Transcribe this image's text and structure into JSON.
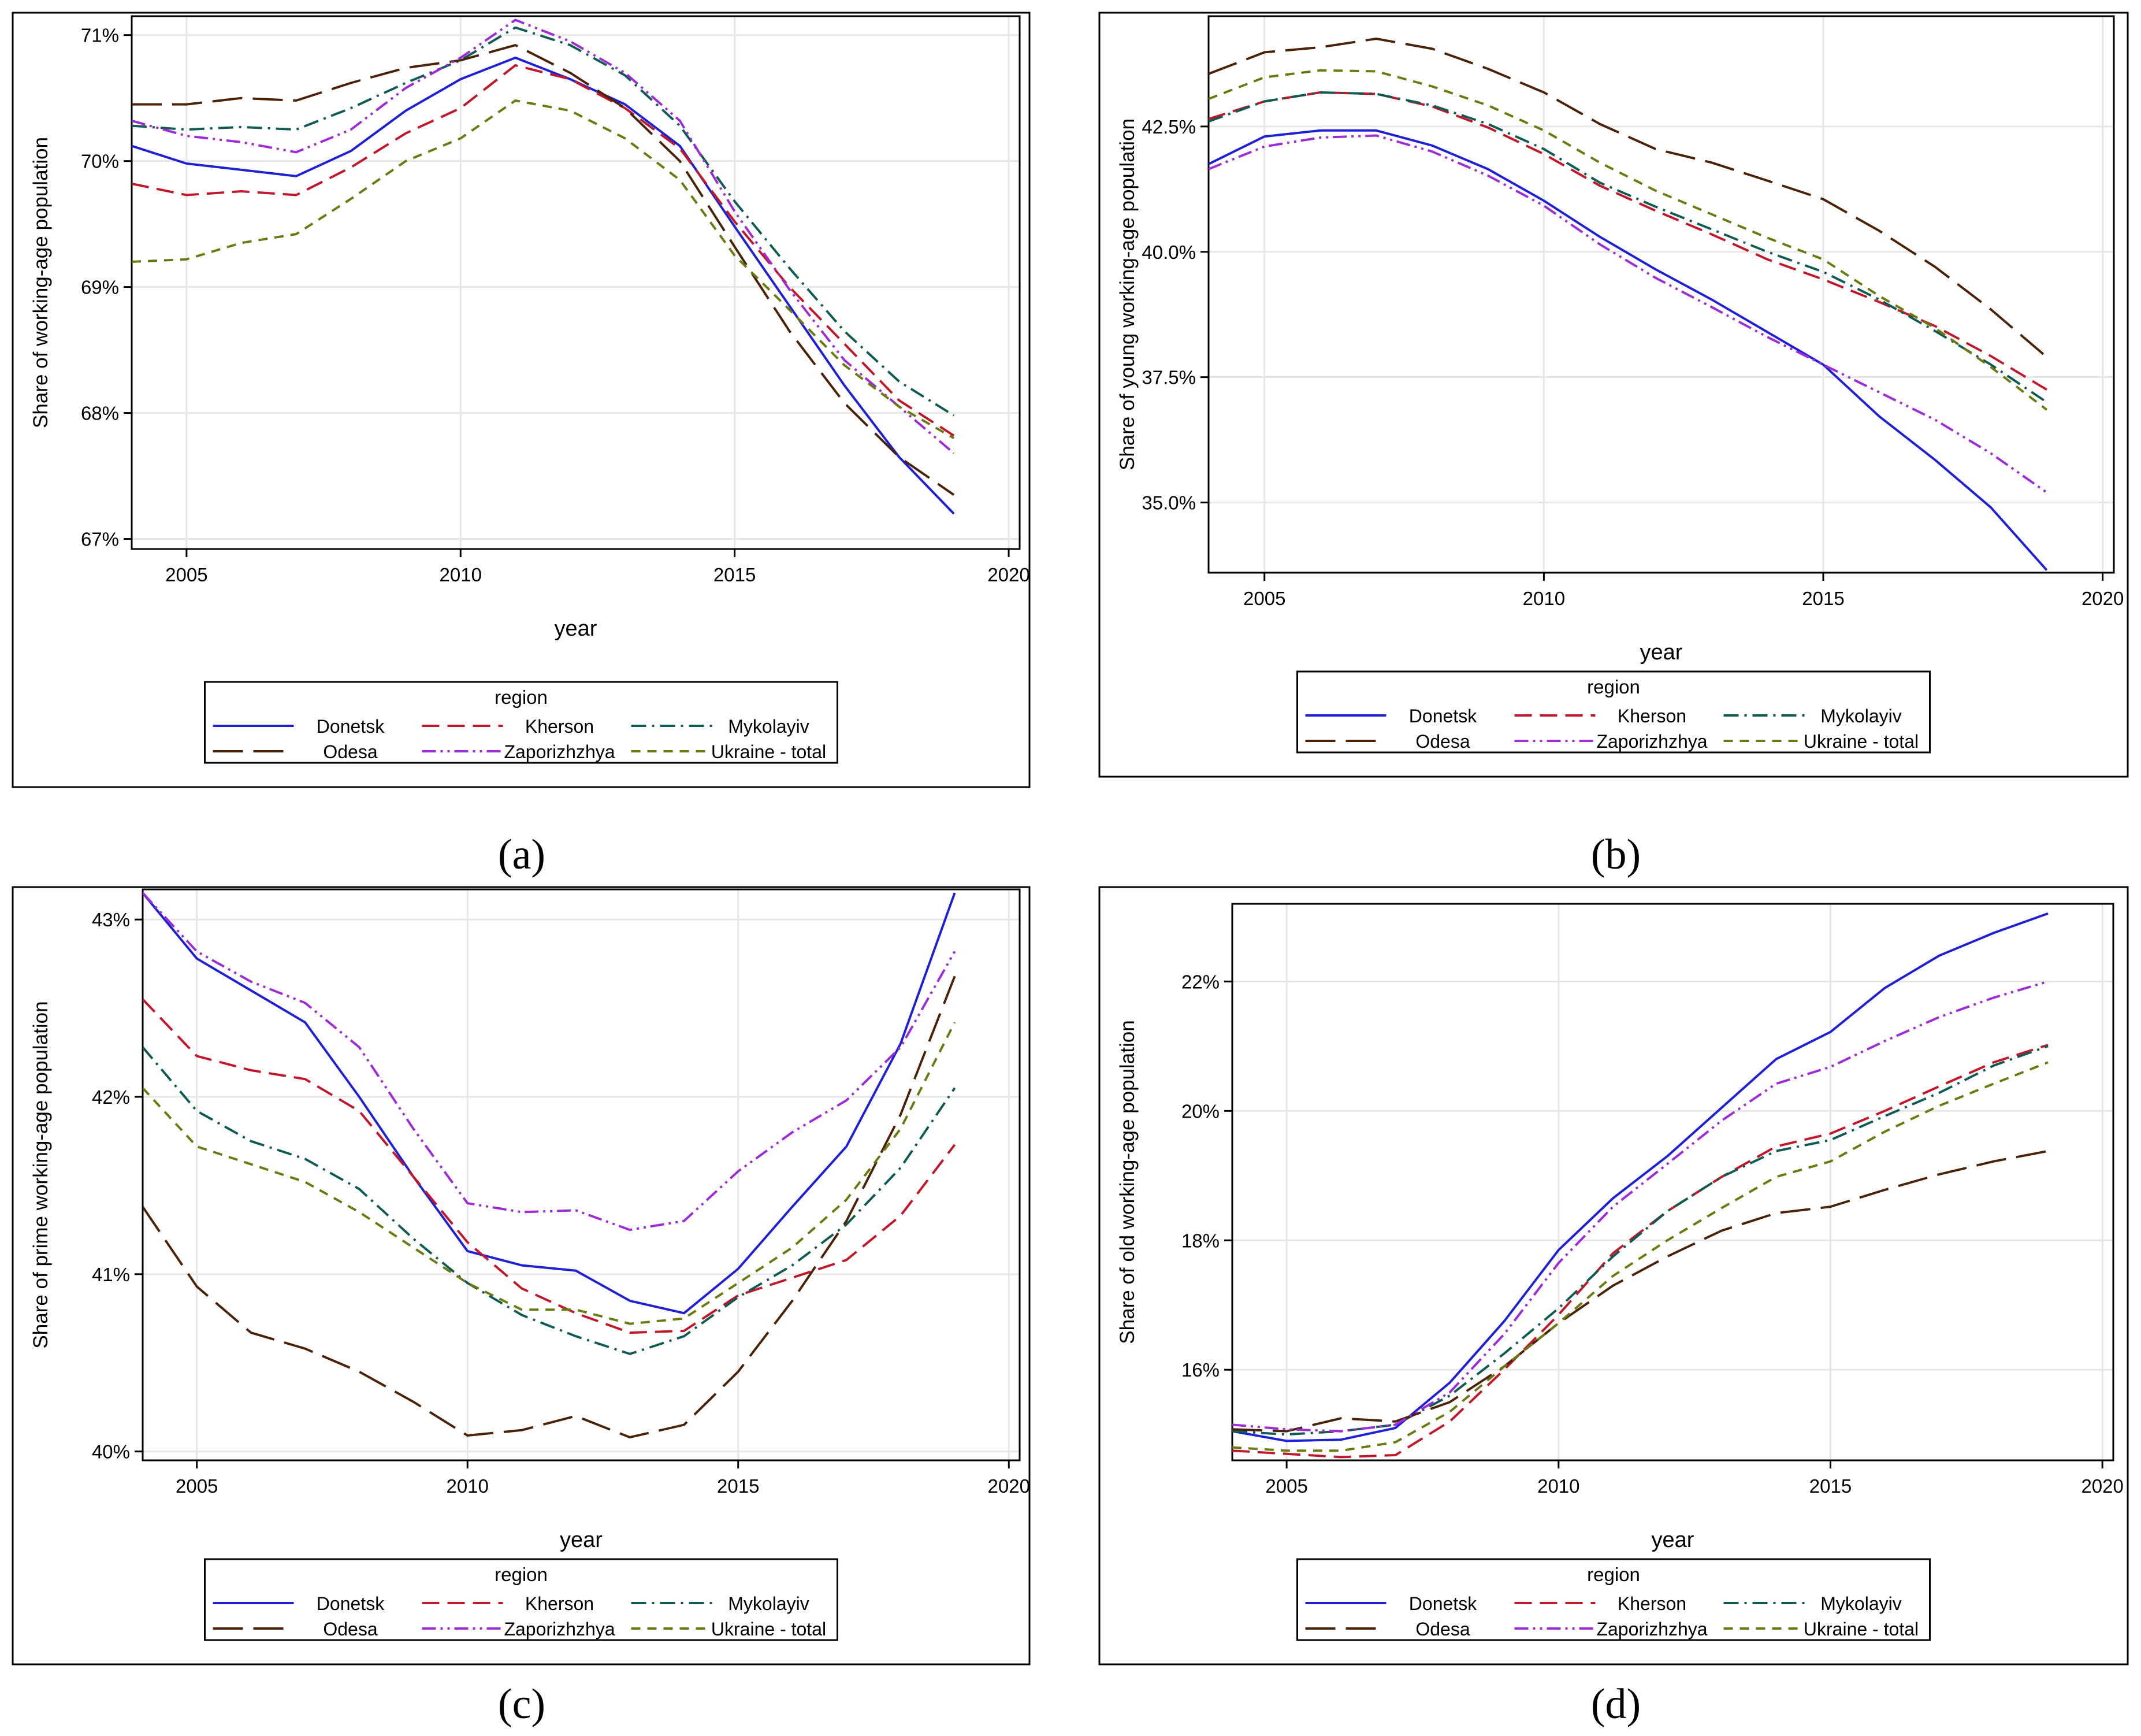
{
  "series_styles": [
    {
      "name": "Donetsk",
      "color": "#1f1fd6",
      "dash": "solid"
    },
    {
      "name": "Kherson",
      "color": "#c0182a",
      "dash": "longdash"
    },
    {
      "name": "Mykolayiv",
      "color": "#0f5a52",
      "dash": "dashdot"
    },
    {
      "name": "Odesa",
      "color": "#4a2208",
      "dash": "verylongdash"
    },
    {
      "name": "Zaporizhzhya",
      "color": "#9d2bd6",
      "dash": "dashdotdot"
    },
    {
      "name": "Ukraine - total",
      "color": "#6b7a10",
      "dash": "shortdash"
    }
  ],
  "chart_data": [
    {
      "type": "line",
      "panel_label": "(a)",
      "ylabel": "Share of working-age population",
      "xlabel": "year",
      "legend_title": "region",
      "legend_position": "bottom",
      "xlim": [
        2004,
        2020.2
      ],
      "ylim": [
        66.92,
        71.15
      ],
      "xticks": [
        {
          "v": 2005,
          "label": "2005"
        },
        {
          "v": 2010,
          "label": "2010"
        },
        {
          "v": 2015,
          "label": "2015"
        },
        {
          "v": 2020,
          "label": "2020"
        }
      ],
      "yticks": [
        {
          "v": 67,
          "label": "67%"
        },
        {
          "v": 68,
          "label": "68%"
        },
        {
          "v": 69,
          "label": "69%"
        },
        {
          "v": 70,
          "label": "70%"
        },
        {
          "v": 71,
          "label": "71%"
        }
      ],
      "x": [
        2004,
        2005,
        2006,
        2007,
        2008,
        2009,
        2010,
        2011,
        2012,
        2013,
        2014,
        2015,
        2016,
        2017,
        2018,
        2019
      ],
      "series": [
        {
          "name": "Donetsk",
          "values": [
            70.12,
            69.98,
            69.93,
            69.88,
            70.08,
            70.4,
            70.65,
            70.82,
            70.65,
            70.45,
            70.12,
            69.48,
            68.85,
            68.22,
            67.65,
            67.2
          ]
        },
        {
          "name": "Kherson",
          "values": [
            69.82,
            69.73,
            69.76,
            69.73,
            69.95,
            70.22,
            70.42,
            70.76,
            70.65,
            70.42,
            70.1,
            69.52,
            69.0,
            68.55,
            68.1,
            67.82
          ]
        },
        {
          "name": "Mykolayiv",
          "values": [
            70.28,
            70.25,
            70.27,
            70.25,
            70.42,
            70.62,
            70.8,
            71.06,
            70.92,
            70.68,
            70.28,
            69.68,
            69.15,
            68.65,
            68.25,
            67.98
          ]
        },
        {
          "name": "Odesa",
          "values": [
            70.45,
            70.45,
            70.5,
            70.48,
            70.62,
            70.74,
            70.8,
            70.92,
            70.7,
            70.42,
            70.0,
            69.32,
            68.65,
            68.08,
            67.65,
            67.35
          ]
        },
        {
          "name": "Zaporizhzhya",
          "values": [
            70.32,
            70.2,
            70.15,
            70.07,
            70.25,
            70.58,
            70.82,
            71.12,
            70.95,
            70.7,
            70.32,
            69.6,
            68.98,
            68.42,
            68.05,
            67.68
          ]
        },
        {
          "name": "Ukraine - total",
          "values": [
            69.2,
            69.22,
            69.35,
            69.42,
            69.7,
            70.0,
            70.18,
            70.48,
            70.4,
            70.18,
            69.85,
            69.25,
            68.82,
            68.38,
            68.05,
            67.8
          ]
        }
      ]
    },
    {
      "type": "line",
      "panel_label": "(b)",
      "ylabel": "Share of young working-age population",
      "xlabel": "year",
      "legend_title": "region",
      "legend_position": "bottom",
      "xlim": [
        2004,
        2020.2
      ],
      "ylim": [
        33.6,
        44.7
      ],
      "xticks": [
        {
          "v": 2005,
          "label": "2005"
        },
        {
          "v": 2010,
          "label": "2010"
        },
        {
          "v": 2015,
          "label": "2015"
        },
        {
          "v": 2020,
          "label": "2020"
        }
      ],
      "yticks": [
        {
          "v": 35,
          "label": "35.0%"
        },
        {
          "v": 37.5,
          "label": "37.5%"
        },
        {
          "v": 40,
          "label": "40.0%"
        },
        {
          "v": 42.5,
          "label": "42.5%"
        }
      ],
      "x": [
        2004,
        2005,
        2006,
        2007,
        2008,
        2009,
        2010,
        2011,
        2012,
        2013,
        2014,
        2015,
        2016,
        2017,
        2018,
        2019
      ],
      "series": [
        {
          "name": "Donetsk",
          "values": [
            41.75,
            42.3,
            42.42,
            42.42,
            42.12,
            41.65,
            41.02,
            40.3,
            39.65,
            39.05,
            38.4,
            37.75,
            36.72,
            35.85,
            34.9,
            33.65
          ]
        },
        {
          "name": "Kherson",
          "values": [
            42.65,
            43.0,
            43.18,
            43.15,
            42.9,
            42.48,
            41.95,
            41.32,
            40.82,
            40.35,
            39.85,
            39.45,
            39.0,
            38.52,
            37.92,
            37.25
          ]
        },
        {
          "name": "Mykolayiv",
          "values": [
            42.6,
            43.0,
            43.18,
            43.15,
            42.92,
            42.55,
            42.05,
            41.38,
            40.9,
            40.45,
            40.0,
            39.6,
            39.05,
            38.42,
            37.75,
            37.0
          ]
        },
        {
          "name": "Odesa",
          "values": [
            43.55,
            43.98,
            44.08,
            44.25,
            44.05,
            43.65,
            43.18,
            42.55,
            42.05,
            41.78,
            41.42,
            41.05,
            40.42,
            39.7,
            38.85,
            37.9
          ]
        },
        {
          "name": "Zaporizhzhya",
          "values": [
            41.65,
            42.1,
            42.28,
            42.32,
            42.0,
            41.52,
            40.92,
            40.15,
            39.48,
            38.9,
            38.3,
            37.75,
            37.2,
            36.65,
            35.98,
            35.2
          ]
        },
        {
          "name": "Ukraine - total",
          "values": [
            43.05,
            43.48,
            43.62,
            43.6,
            43.3,
            42.92,
            42.42,
            41.78,
            41.22,
            40.75,
            40.28,
            39.85,
            39.12,
            38.48,
            37.7,
            36.85
          ]
        }
      ]
    },
    {
      "type": "line",
      "panel_label": "(c)",
      "ylabel": "Share of prime working-age population",
      "xlabel": "year",
      "legend_title": "region",
      "legend_position": "bottom",
      "xlim": [
        2004,
        2020.2
      ],
      "ylim": [
        39.95,
        43.17
      ],
      "xticks": [
        {
          "v": 2005,
          "label": "2005"
        },
        {
          "v": 2010,
          "label": "2010"
        },
        {
          "v": 2015,
          "label": "2015"
        },
        {
          "v": 2020,
          "label": "2020"
        }
      ],
      "yticks": [
        {
          "v": 40,
          "label": "40%"
        },
        {
          "v": 41,
          "label": "41%"
        },
        {
          "v": 42,
          "label": "42%"
        },
        {
          "v": 43,
          "label": "43%"
        }
      ],
      "x": [
        2004,
        2005,
        2006,
        2007,
        2008,
        2009,
        2010,
        2011,
        2012,
        2013,
        2014,
        2015,
        2016,
        2017,
        2018,
        2019
      ],
      "series": [
        {
          "name": "Donetsk",
          "values": [
            43.15,
            42.78,
            42.6,
            42.42,
            42.0,
            41.55,
            41.13,
            41.05,
            41.02,
            40.85,
            40.78,
            41.03,
            41.38,
            41.72,
            42.3,
            43.15
          ]
        },
        {
          "name": "Kherson",
          "values": [
            42.55,
            42.23,
            42.15,
            42.1,
            41.92,
            41.55,
            41.18,
            40.92,
            40.78,
            40.67,
            40.68,
            40.88,
            40.98,
            41.08,
            41.33,
            41.73
          ]
        },
        {
          "name": "Mykolayiv",
          "values": [
            42.28,
            41.92,
            41.75,
            41.65,
            41.48,
            41.2,
            40.95,
            40.77,
            40.65,
            40.55,
            40.65,
            40.87,
            41.05,
            41.28,
            41.6,
            42.05
          ]
        },
        {
          "name": "Odesa",
          "values": [
            41.38,
            40.93,
            40.67,
            40.58,
            40.45,
            40.28,
            40.09,
            40.12,
            40.2,
            40.08,
            40.15,
            40.45,
            40.85,
            41.3,
            41.9,
            42.68
          ]
        },
        {
          "name": "Zaporizhzhya",
          "values": [
            43.15,
            42.82,
            42.65,
            42.53,
            42.28,
            41.82,
            41.4,
            41.35,
            41.36,
            41.25,
            41.3,
            41.58,
            41.8,
            41.98,
            42.28,
            42.82
          ]
        },
        {
          "name": "Ukraine - total",
          "values": [
            42.05,
            41.72,
            41.62,
            41.52,
            41.35,
            41.15,
            40.95,
            40.8,
            40.8,
            40.72,
            40.75,
            40.95,
            41.15,
            41.42,
            41.82,
            42.42
          ]
        }
      ]
    },
    {
      "type": "line",
      "panel_label": "(d)",
      "ylabel": "Share of old working-age population",
      "xlabel": "year",
      "legend_title": "region",
      "legend_position": "bottom",
      "xlim": [
        2004,
        2020.2
      ],
      "ylim": [
        14.6,
        23.2
      ],
      "xticks": [
        {
          "v": 2005,
          "label": "2005"
        },
        {
          "v": 2010,
          "label": "2010"
        },
        {
          "v": 2015,
          "label": "2015"
        },
        {
          "v": 2020,
          "label": "2020"
        }
      ],
      "yticks": [
        {
          "v": 16,
          "label": "16%"
        },
        {
          "v": 18,
          "label": "18%"
        },
        {
          "v": 20,
          "label": "20%"
        },
        {
          "v": 22,
          "label": "22%"
        }
      ],
      "x": [
        2004,
        2005,
        2006,
        2007,
        2008,
        2009,
        2010,
        2011,
        2012,
        2013,
        2014,
        2015,
        2016,
        2017,
        2018,
        2019
      ],
      "series": [
        {
          "name": "Donetsk",
          "values": [
            15.05,
            14.9,
            14.92,
            15.1,
            15.8,
            16.75,
            17.85,
            18.65,
            19.3,
            20.05,
            20.8,
            21.22,
            21.9,
            22.4,
            22.75,
            23.05
          ]
        },
        {
          "name": "Kherson",
          "values": [
            14.75,
            14.7,
            14.65,
            14.68,
            15.2,
            16.0,
            16.85,
            17.8,
            18.45,
            18.98,
            19.45,
            19.65,
            20.0,
            20.38,
            20.75,
            21.02
          ]
        },
        {
          "name": "Mykolayiv",
          "values": [
            15.05,
            15.0,
            15.05,
            15.15,
            15.6,
            16.25,
            16.95,
            17.75,
            18.45,
            18.98,
            19.38,
            19.55,
            19.92,
            20.28,
            20.7,
            21.0
          ]
        },
        {
          "name": "Odesa",
          "values": [
            15.08,
            15.05,
            15.25,
            15.2,
            15.5,
            16.05,
            16.72,
            17.3,
            17.75,
            18.15,
            18.42,
            18.52,
            18.78,
            19.02,
            19.22,
            19.38
          ]
        },
        {
          "name": "Zaporizhzhya",
          "values": [
            15.15,
            15.08,
            15.05,
            15.15,
            15.65,
            16.55,
            17.65,
            18.52,
            19.18,
            19.85,
            20.42,
            20.68,
            21.08,
            21.45,
            21.75,
            22.0
          ]
        },
        {
          "name": "Ukraine - total",
          "values": [
            14.8,
            14.75,
            14.75,
            14.88,
            15.35,
            16.05,
            16.72,
            17.45,
            18.0,
            18.5,
            18.98,
            19.22,
            19.68,
            20.08,
            20.42,
            20.75
          ]
        }
      ]
    }
  ]
}
